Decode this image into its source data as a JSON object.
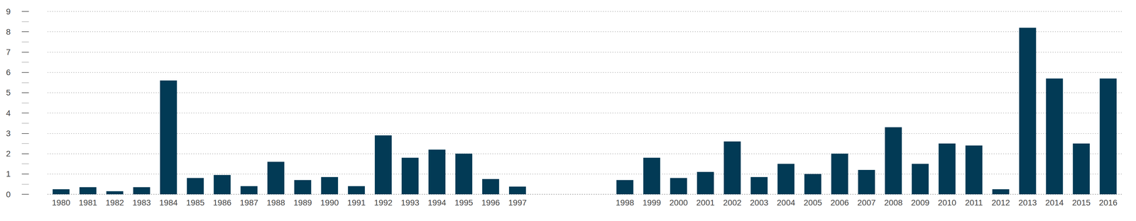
{
  "chart_data": {
    "type": "bar",
    "categories": [
      "1980",
      "1981",
      "1982",
      "1983",
      "1984",
      "1985",
      "1986",
      "1987",
      "1988",
      "1989",
      "1990",
      "1991",
      "1992",
      "1993",
      "1994",
      "1995",
      "1996",
      "1997",
      null,
      null,
      null,
      "1998",
      "1999",
      "2000",
      "2001",
      "2002",
      "2003",
      "2004",
      "2005",
      "2006",
      "2007",
      "2008",
      "2009",
      "2010",
      "2011",
      "2012",
      "2013",
      "2014",
      "2015",
      "2016"
    ],
    "values": [
      0.25,
      0.35,
      0.15,
      0.35,
      5.6,
      0.8,
      0.95,
      0.4,
      1.6,
      0.7,
      0.85,
      0.4,
      2.9,
      1.8,
      2.2,
      2.0,
      0.75,
      0.38,
      null,
      null,
      null,
      0.7,
      1.8,
      0.8,
      1.1,
      2.6,
      0.85,
      1.5,
      1.0,
      2.0,
      1.2,
      3.3,
      1.5,
      2.5,
      2.4,
      0.25,
      8.2,
      5.7,
      2.5,
      5.7
    ],
    "color": "#023a55",
    "ylim": [
      0,
      9
    ],
    "yticks": [
      0,
      1,
      2,
      3,
      4,
      5,
      6,
      7,
      8,
      9
    ],
    "grid": true
  }
}
